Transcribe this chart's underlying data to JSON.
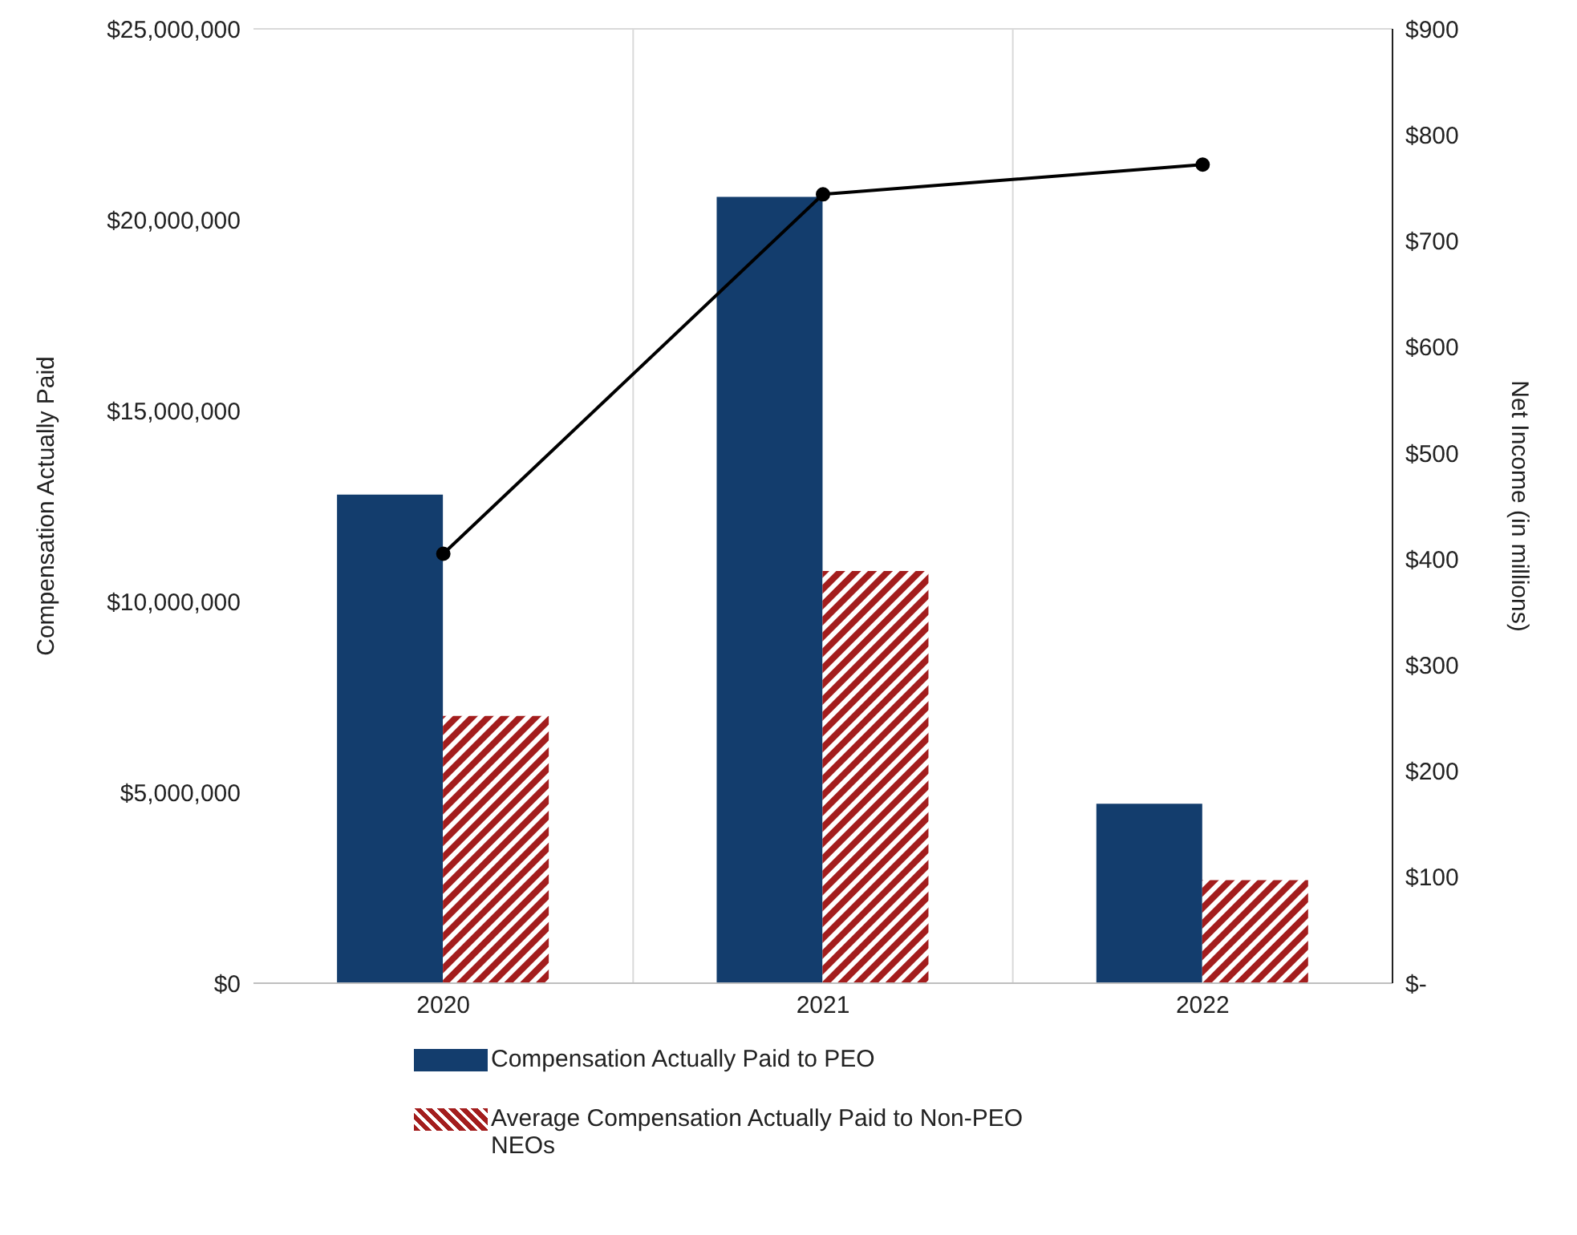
{
  "chart_data": {
    "type": "bar",
    "ylabel": "Compensation Actually Paid",
    "y2label": "Net Income (in millions)",
    "categories": [
      "2020",
      "2021",
      "2022"
    ],
    "series": [
      {
        "name": "Compensation Actually Paid to PEO",
        "color": "#133d6d",
        "values": [
          12800000,
          20600000,
          4700000
        ]
      },
      {
        "name": "Average Compensation Actually Paid to Non-PEO NEOs",
        "color": "#a31d1d",
        "values": [
          7000000,
          10800000,
          2700000
        ]
      },
      {
        "type": "line",
        "axis": "y2",
        "color": "#000000",
        "marker": "circle",
        "values": [
          405,
          744,
          772
        ]
      }
    ],
    "ylim": [
      0,
      25000000
    ],
    "yticks": [
      {
        "value": 0,
        "label": "$0"
      },
      {
        "value": 5000000,
        "label": "$5,000,000"
      },
      {
        "value": 10000000,
        "label": "$10,000,000"
      },
      {
        "value": 15000000,
        "label": "$15,000,000"
      },
      {
        "value": 20000000,
        "label": "$20,000,000"
      },
      {
        "value": 25000000,
        "label": "$25,000,000"
      }
    ],
    "y2lim": [
      0,
      900
    ],
    "y2ticks": [
      {
        "value": 0,
        "label": "$-"
      },
      {
        "value": 100,
        "label": "$100"
      },
      {
        "value": 200,
        "label": "$200"
      },
      {
        "value": 300,
        "label": "$300"
      },
      {
        "value": 400,
        "label": "$400"
      },
      {
        "value": 500,
        "label": "$500"
      },
      {
        "value": 600,
        "label": "$600"
      },
      {
        "value": 700,
        "label": "$700"
      },
      {
        "value": 800,
        "label": "$800"
      },
      {
        "value": 900,
        "label": "$900"
      }
    ],
    "grid": true,
    "legend": "bottom"
  }
}
